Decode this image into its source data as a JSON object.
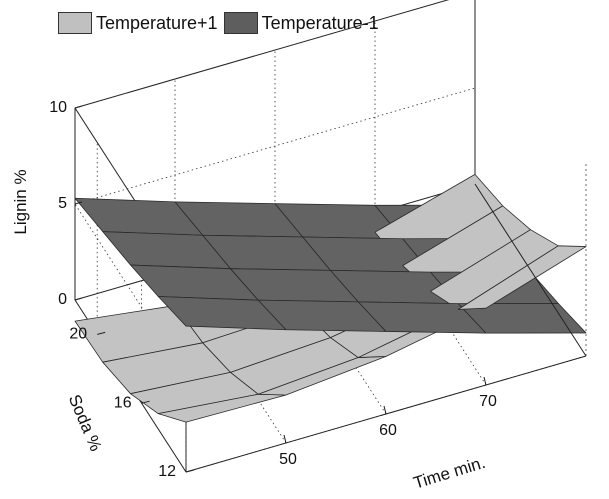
{
  "chart_data": {
    "type": "surface3d",
    "zlabel": "Lignin %",
    "ylabel": "Soda %",
    "xlabel": "Time min.",
    "zlim": [
      0,
      10
    ],
    "yrange": [
      12,
      22
    ],
    "xrange": [
      40,
      80
    ],
    "zticks": [
      "0",
      "5",
      "10"
    ],
    "yticks": [
      "12",
      "16",
      "20"
    ],
    "xticks": [
      "50",
      "60",
      "70"
    ],
    "grid": true,
    "legend_position": "top-left",
    "legend": [
      {
        "name": "Temperature+1",
        "color": "#c0c0c0"
      },
      {
        "name": "Temperature-1",
        "color": "#5e5e5e"
      }
    ],
    "series": [
      {
        "name": "Temperature+1",
        "color": "#c3c3c3",
        "x": [
          40,
          50,
          60,
          70,
          80
        ],
        "y": [
          12,
          14.5,
          17,
          19.5,
          22
        ],
        "z": [
          [
            2.6,
            2.5,
            3.0,
            4.0,
            5.7
          ],
          [
            0.8,
            0.3,
            0.7,
            1.7,
            3.5
          ],
          [
            -0.4,
            -0.8,
            -0.5,
            0.4,
            2.1
          ],
          [
            -1.0,
            -1.5,
            -1.3,
            -0.5,
            1.1
          ],
          [
            -1.1,
            -1.8,
            -1.7,
            -1.0,
            0.5
          ]
        ]
      },
      {
        "name": "Temperature-1",
        "color": "#636363",
        "x": [
          40,
          50,
          60,
          70,
          80
        ],
        "y": [
          12,
          14.5,
          17,
          19.5,
          22
        ],
        "z": [
          [
            7.6,
            5.9,
            4.3,
            2.7,
            1.2
          ],
          [
            6.9,
            5.2,
            3.6,
            2.0,
            0.5
          ],
          [
            6.3,
            4.6,
            3.0,
            1.4,
            -0.1
          ],
          [
            5.8,
            4.1,
            2.5,
            0.9,
            -0.6
          ],
          [
            5.3,
            3.6,
            2.0,
            0.4,
            -1.1
          ]
        ]
      }
    ]
  }
}
